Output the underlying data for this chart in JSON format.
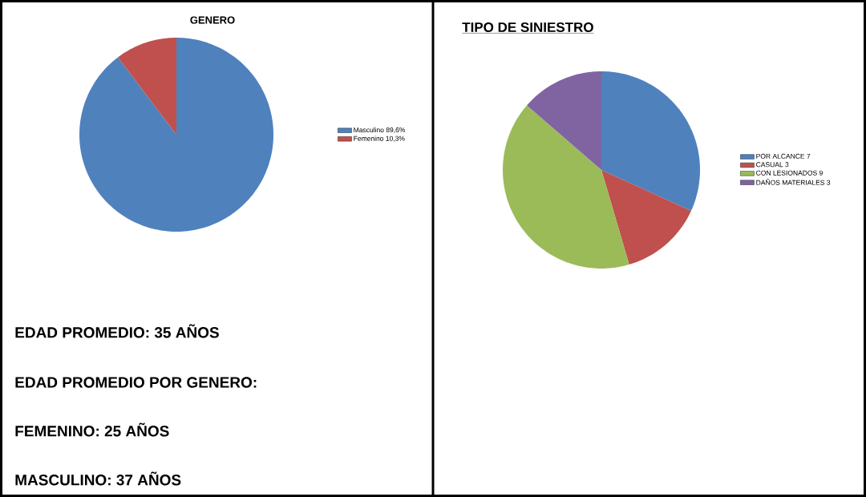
{
  "chart_data": [
    {
      "type": "pie",
      "title": "GENERO",
      "categories": [
        "Masculino 89,6%",
        "Femenino 10,3%"
      ],
      "values": [
        89.6,
        10.3
      ],
      "colors": [
        "#4f81bd",
        "#c0504d"
      ],
      "legend": "right"
    },
    {
      "type": "other",
      "annotations": [
        "EDAD PROMEDIO:  35 AÑOS",
        "EDAD PROMEDIO POR GENERO:",
        "FEMENINO: 25 AÑOS",
        "MASCULINO: 37 AÑOS"
      ]
    },
    {
      "type": "pie",
      "title": "TIPO DE SINIESTRO",
      "categories": [
        "POR ALCANCE 7",
        "CASUAL 3",
        "CON LESIONADOS 9",
        "DAÑOS MATERIALES 3"
      ],
      "values": [
        7,
        3,
        9,
        3
      ],
      "colors": [
        "#4f81bd",
        "#c0504d",
        "#9bbb59",
        "#8064a2"
      ],
      "legend": "right"
    }
  ]
}
